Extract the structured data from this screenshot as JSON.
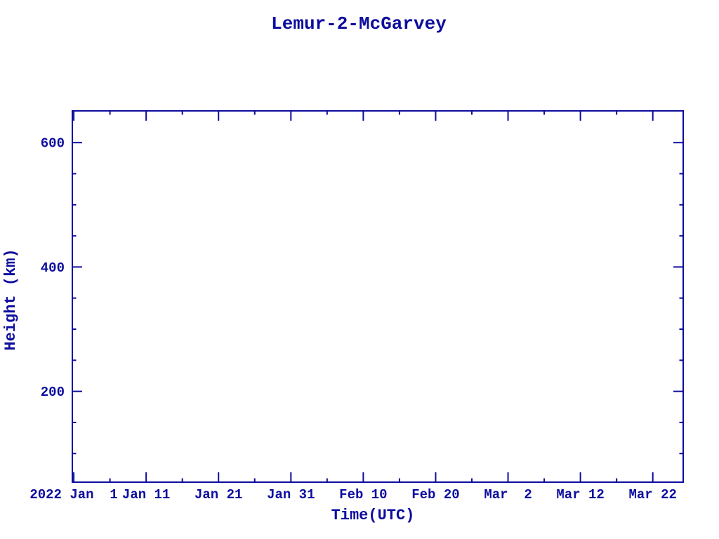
{
  "page": {
    "background": "#ffffff"
  },
  "chart_data": {
    "type": "line",
    "title": "Lemur-2-McGarvey",
    "xlabel": "Time(UTC)",
    "ylabel": "Height (km)",
    "accent_color": "#0d0d9e",
    "grid": false,
    "legend": "none",
    "plot_area_empty": true,
    "x_axis": {
      "unit": "date (UTC), year 2022",
      "range_days_from_jan1": [
        -0.2,
        84.2
      ],
      "major_tick_days": [
        0,
        10,
        20,
        30,
        40,
        50,
        60,
        70,
        80
      ],
      "minor_tick_days": [
        5,
        15,
        25,
        35,
        45,
        55,
        65,
        75
      ],
      "tick_labels": [
        "2022 Jan  1",
        "Jan 11",
        "Jan 21",
        "Jan 31",
        "Feb 10",
        "Feb 20",
        "Mar  2",
        "Mar 12",
        "Mar 22"
      ]
    },
    "y_axis": {
      "unit": "km",
      "range": [
        54,
        651
      ],
      "major_ticks": [
        200,
        400,
        600
      ],
      "minor_ticks": [
        100,
        150,
        250,
        300,
        350,
        450,
        500,
        550
      ],
      "tick_labels": [
        "200",
        "400",
        "600"
      ]
    },
    "series": []
  }
}
